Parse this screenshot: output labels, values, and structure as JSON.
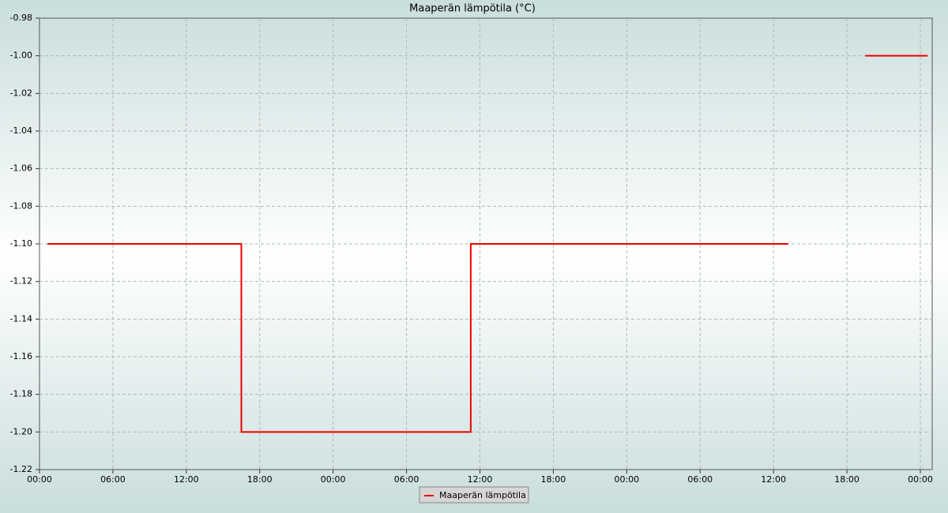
{
  "chart_data": {
    "type": "line",
    "title": "Maaperän lämpötila (°C)",
    "x": [
      0.65,
      16.5,
      16.5,
      35.25,
      35.25,
      61.2,
      64,
      67.5,
      72.6
    ],
    "series": [
      {
        "name": "Maaperän lämpötila",
        "color": "#ee0000",
        "values": [
          -1.1,
          -1.1,
          -1.2,
          -1.2,
          -1.1,
          -1.1,
          null,
          -1.0,
          -1.0
        ]
      }
    ],
    "xlim": [
      0,
      72.97
    ],
    "xticks": [
      {
        "value": 0,
        "label": "00:00"
      },
      {
        "value": 6,
        "label": "06:00"
      },
      {
        "value": 12,
        "label": "12:00"
      },
      {
        "value": 18,
        "label": "18:00"
      },
      {
        "value": 24,
        "label": "00:00"
      },
      {
        "value": 30,
        "label": "06:00"
      },
      {
        "value": 36,
        "label": "12:00"
      },
      {
        "value": 42,
        "label": "18:00"
      },
      {
        "value": 48,
        "label": "00:00"
      },
      {
        "value": 54,
        "label": "06:00"
      },
      {
        "value": 60,
        "label": "12:00"
      },
      {
        "value": 66,
        "label": "18:00"
      },
      {
        "value": 72,
        "label": "00:00"
      }
    ],
    "ylim": [
      -1.22,
      -0.98
    ],
    "yticks": [
      -1.22,
      {
        "value": -1.2,
        "label": "-1.20"
      },
      -1.18,
      -1.16,
      -1.14,
      -1.12,
      {
        "value": -1.1,
        "label": "-1.10"
      },
      -1.08,
      -1.06,
      -1.04,
      -1.02,
      {
        "value": -1.0,
        "label": "-1.00"
      },
      -0.98
    ],
    "grid": true,
    "legend": "bottom"
  }
}
